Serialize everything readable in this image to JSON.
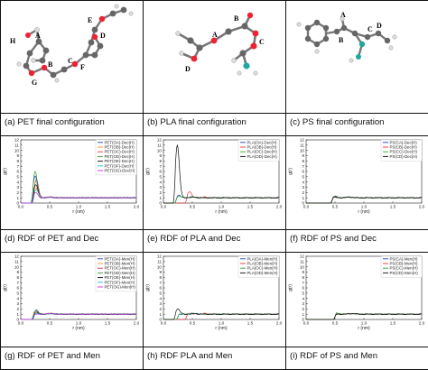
{
  "captions": {
    "a": "(a) PET final configuration",
    "b": "(b) PLA final configuration",
    "c": "(c) PS final configuration",
    "d": "(d) RDF of PET and Dec",
    "e": "(e) RDF of PLA and Dec",
    "f": "(f) RDF of PS and Dec",
    "g": "(g) RDF of PET and Men",
    "h": "(h) RDF PLA and Men",
    "i": "(i) RDF of PS and Men"
  },
  "molecules": {
    "pet": {
      "labels": [
        "H",
        "A",
        "B",
        "C",
        "D",
        "E",
        "F",
        "G"
      ]
    },
    "pla": {
      "labels": [
        "A",
        "B",
        "C",
        "D"
      ]
    },
    "ps": {
      "labels": [
        "A",
        "B",
        "C",
        "D"
      ]
    }
  },
  "colors": {
    "blue": "#1f3fcf",
    "red": "#e0323a",
    "green": "#2ca02c",
    "black": "#111111",
    "orange": "#ff8c1a",
    "cyan": "#17becf",
    "magenta": "#d62ad6"
  },
  "chart_data": [
    {
      "id": "d",
      "type": "line",
      "xlabel": "r (nm)",
      "ylabel": "g(r)",
      "xlim": [
        0,
        2.0
      ],
      "ylim": [
        0,
        12
      ],
      "xticks": [
        "0.0",
        "0.5",
        "1.0",
        "1.5",
        "2.0"
      ],
      "yticks": [
        "0",
        "1",
        "2",
        "3",
        "4",
        "5",
        "6",
        "7",
        "8",
        "9",
        "10",
        "11",
        "12"
      ],
      "legend_position": "top-right",
      "series": [
        {
          "name": "PET(OA)-Dec(H)",
          "color": "#1f3fcf",
          "peak_x": 0.25,
          "peak_y": 5.2
        },
        {
          "name": "PET(OB)-Dec(H)",
          "color": "#ff8c1a",
          "peak_x": 0.26,
          "peak_y": 3.0
        },
        {
          "name": "PET(OC)-Dec(H)",
          "color": "#e0323a",
          "peak_x": 0.27,
          "peak_y": 4.5
        },
        {
          "name": "PET(OD)-Dec(H)",
          "color": "#2ca02c",
          "peak_x": 0.25,
          "peak_y": 6.0
        },
        {
          "name": "PET(OE)-Dec(H)",
          "color": "#111111",
          "peak_x": 0.26,
          "peak_y": 3.5
        },
        {
          "name": "PET(OF)-Dec(H)",
          "color": "#17becf",
          "peak_x": 0.27,
          "peak_y": 2.5
        },
        {
          "name": "PET(OG)-Dec(H)",
          "color": "#d62ad6",
          "peak_x": 0.26,
          "peak_y": 2.0
        }
      ]
    },
    {
      "id": "e",
      "type": "line",
      "xlabel": "r (nm)",
      "ylabel": "g(r)",
      "xlim": [
        0,
        2.0
      ],
      "ylim": [
        0,
        12
      ],
      "xticks": [
        "0.0",
        "0.5",
        "1.0",
        "1.5",
        "2.0"
      ],
      "yticks": [
        "0",
        "1",
        "2",
        "3",
        "4",
        "5",
        "6",
        "7",
        "8",
        "9",
        "10",
        "11",
        "12"
      ],
      "legend_position": "top-right",
      "series": [
        {
          "name": "PLA(OA)-Dec(H)",
          "color": "#1f3fcf",
          "peak_x": 0.27,
          "peak_y": 1.5
        },
        {
          "name": "PLA(OB)-Dec(H)",
          "color": "#e0323a",
          "peak_x": 0.45,
          "peak_y": 2.2
        },
        {
          "name": "PLA(OC)-Dec(H)",
          "color": "#2ca02c",
          "peak_x": 0.27,
          "peak_y": 1.3
        },
        {
          "name": "PLA(OD)-Dec(H)",
          "color": "#111111",
          "peak_x": 0.24,
          "peak_y": 11.0
        }
      ]
    },
    {
      "id": "f",
      "type": "line",
      "xlabel": "r (nm)",
      "ylabel": "g(r)",
      "xlim": [
        0,
        2.0
      ],
      "ylim": [
        0,
        12
      ],
      "xticks": [
        "0.0",
        "0.5",
        "1.0",
        "1.5",
        "2.0"
      ],
      "yticks": [
        "0",
        "1",
        "2",
        "3",
        "4",
        "5",
        "6",
        "7",
        "8",
        "9",
        "10",
        "11",
        "12"
      ],
      "legend_position": "top-right",
      "series": [
        {
          "name": "PS(CA)-Dec(H)",
          "color": "#1f3fcf",
          "peak_x": 0.5,
          "peak_y": 1.2
        },
        {
          "name": "PS(CB)-Dec(H)",
          "color": "#e0323a",
          "peak_x": 0.5,
          "peak_y": 1.1
        },
        {
          "name": "PS(CC)-Dec(H)",
          "color": "#2ca02c",
          "peak_x": 0.5,
          "peak_y": 1.3
        },
        {
          "name": "PS(CD)-Dec(H)",
          "color": "#111111",
          "peak_x": 0.5,
          "peak_y": 1.1
        }
      ]
    },
    {
      "id": "g",
      "type": "line",
      "xlabel": "r (nm)",
      "ylabel": "g(r)",
      "xlim": [
        0,
        2.0
      ],
      "ylim": [
        0,
        12
      ],
      "xticks": [
        "0.0",
        "0.5",
        "1.0",
        "1.5",
        "2.0"
      ],
      "yticks": [
        "0",
        "1",
        "2",
        "3",
        "4",
        "5",
        "6",
        "7",
        "8",
        "9",
        "10",
        "11",
        "12"
      ],
      "legend_position": "top-right",
      "series": [
        {
          "name": "PET(OA)-Men(H)",
          "color": "#1f3fcf",
          "peak_x": 0.27,
          "peak_y": 1.8
        },
        {
          "name": "PET(OB)-Men(H)",
          "color": "#ff8c1a",
          "peak_x": 0.28,
          "peak_y": 1.3
        },
        {
          "name": "PET(OC)-Men(H)",
          "color": "#e0323a",
          "peak_x": 0.27,
          "peak_y": 1.5
        },
        {
          "name": "PET(OD)-Men(H)",
          "color": "#2ca02c",
          "peak_x": 0.26,
          "peak_y": 1.6
        },
        {
          "name": "PET(OE)-Men(H)",
          "color": "#111111",
          "peak_x": 0.27,
          "peak_y": 1.2
        },
        {
          "name": "PET(OF)-Men(H)",
          "color": "#17becf",
          "peak_x": 0.28,
          "peak_y": 1.1
        },
        {
          "name": "PET(OG)-Men(H)",
          "color": "#d62ad6",
          "peak_x": 0.27,
          "peak_y": 1.0
        }
      ]
    },
    {
      "id": "h",
      "type": "line",
      "xlabel": "r (nm)",
      "ylabel": "g(r)",
      "xlim": [
        0,
        2.0
      ],
      "ylim": [
        0,
        12
      ],
      "xticks": [
        "0.0",
        "0.5",
        "1.0",
        "1.5",
        "2.0"
      ],
      "yticks": [
        "0",
        "1",
        "2",
        "3",
        "4",
        "5",
        "6",
        "7",
        "8",
        "9",
        "10",
        "11",
        "12"
      ],
      "legend_position": "top-right",
      "series": [
        {
          "name": "PLA(OA)-Men(H)",
          "color": "#1f3fcf",
          "peak_x": 0.3,
          "peak_y": 1.0
        },
        {
          "name": "PLA(OB)-Men(H)",
          "color": "#e0323a",
          "peak_x": 0.45,
          "peak_y": 1.1
        },
        {
          "name": "PLA(OC)-Men(H)",
          "color": "#2ca02c",
          "peak_x": 0.3,
          "peak_y": 1.0
        },
        {
          "name": "PLA(OD)-Men(H)",
          "color": "#111111",
          "peak_x": 0.25,
          "peak_y": 2.0
        }
      ]
    },
    {
      "id": "i",
      "type": "line",
      "xlabel": "r (nm)",
      "ylabel": "g(r)",
      "xlim": [
        0,
        2.0
      ],
      "ylim": [
        0,
        12
      ],
      "xticks": [
        "0.0",
        "0.5",
        "1.0",
        "1.5",
        "2.0"
      ],
      "yticks": [
        "0",
        "1",
        "2",
        "3",
        "4",
        "5",
        "6",
        "7",
        "8",
        "9",
        "10",
        "11",
        "12"
      ],
      "legend_position": "top-right",
      "series": [
        {
          "name": "PS(CA)-Men(H)",
          "color": "#1f3fcf",
          "peak_x": 0.55,
          "peak_y": 1.1
        },
        {
          "name": "PS(CB)-Men(H)",
          "color": "#e0323a",
          "peak_x": 0.55,
          "peak_y": 1.0
        },
        {
          "name": "PS(CC)-Men(H)",
          "color": "#2ca02c",
          "peak_x": 0.55,
          "peak_y": 1.2
        },
        {
          "name": "PS(CD)-Men(H)",
          "color": "#111111",
          "peak_x": 0.55,
          "peak_y": 1.0
        }
      ]
    }
  ]
}
